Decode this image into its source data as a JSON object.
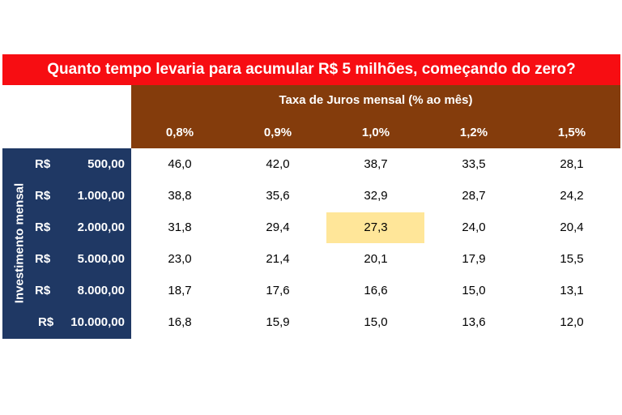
{
  "title": "Quanto tempo levaria para acumular R$ 5 milhões, começando do zero?",
  "header_caption": "Taxa de Juros mensal (% ao mês)",
  "side_caption": "Investimento mensal",
  "colors": {
    "title_bg": "#f70d12",
    "header_bg": "#843c0c",
    "side_bg": "#1f3864",
    "highlight_bg": "#ffe699"
  },
  "rates": [
    "0,8%",
    "0,9%",
    "1,0%",
    "1,2%",
    "1,5%"
  ],
  "rows": [
    {
      "currency": "R$",
      "amount": "500,00",
      "values": [
        "46,0",
        "42,0",
        "38,7",
        "33,5",
        "28,1"
      ]
    },
    {
      "currency": "R$",
      "amount": "1.000,00",
      "values": [
        "38,8",
        "35,6",
        "32,9",
        "28,7",
        "24,2"
      ]
    },
    {
      "currency": "R$",
      "amount": "2.000,00",
      "values": [
        "31,8",
        "29,4",
        "27,3",
        "24,0",
        "20,4"
      ]
    },
    {
      "currency": "R$",
      "amount": "5.000,00",
      "values": [
        "23,0",
        "21,4",
        "20,1",
        "17,9",
        "15,5"
      ]
    },
    {
      "currency": "R$",
      "amount": "8.000,00",
      "values": [
        "18,7",
        "17,6",
        "16,6",
        "15,0",
        "13,1"
      ]
    },
    {
      "currency": "R$",
      "amount": "10.000,00",
      "values": [
        "16,8",
        "15,9",
        "15,0",
        "13,6",
        "12,0"
      ]
    }
  ],
  "highlighted_cell": {
    "row": 2,
    "col": 2
  }
}
